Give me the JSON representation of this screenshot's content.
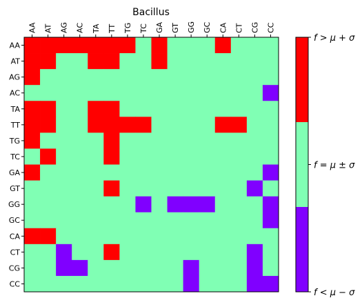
{
  "chart_data": {
    "type": "heatmap",
    "title": "Bacillus",
    "x_labels": [
      "AA",
      "AT",
      "AG",
      "AC",
      "TA",
      "TT",
      "TG",
      "TC",
      "GA",
      "GT",
      "GG",
      "GC",
      "CA",
      "CT",
      "CG",
      "CC"
    ],
    "y_labels": [
      "AA",
      "AT",
      "AG",
      "AC",
      "TA",
      "TT",
      "TG",
      "TC",
      "GA",
      "GT",
      "GG",
      "GC",
      "CA",
      "CT",
      "CG",
      "CC"
    ],
    "values_legend": "1 = f > μ + σ (high), 0 = f = μ ± σ (typical), -1 = f < μ − σ (low)",
    "values": [
      [
        1,
        1,
        1,
        1,
        1,
        1,
        1,
        0,
        1,
        0,
        0,
        0,
        1,
        0,
        0,
        0
      ],
      [
        1,
        1,
        0,
        0,
        1,
        1,
        0,
        0,
        1,
        0,
        0,
        0,
        0,
        0,
        0,
        0
      ],
      [
        1,
        0,
        0,
        0,
        0,
        0,
        0,
        0,
        0,
        0,
        0,
        0,
        0,
        0,
        0,
        0
      ],
      [
        0,
        0,
        0,
        0,
        0,
        0,
        0,
        0,
        0,
        0,
        0,
        0,
        0,
        0,
        0,
        -1
      ],
      [
        1,
        1,
        0,
        0,
        1,
        1,
        0,
        0,
        0,
        0,
        0,
        0,
        0,
        0,
        0,
        0
      ],
      [
        1,
        1,
        0,
        0,
        1,
        1,
        1,
        1,
        0,
        0,
        0,
        0,
        1,
        1,
        0,
        0
      ],
      [
        1,
        0,
        0,
        0,
        0,
        1,
        0,
        0,
        0,
        0,
        0,
        0,
        0,
        0,
        0,
        0
      ],
      [
        0,
        1,
        0,
        0,
        0,
        1,
        0,
        0,
        0,
        0,
        0,
        0,
        0,
        0,
        0,
        0
      ],
      [
        1,
        0,
        0,
        0,
        0,
        0,
        0,
        0,
        0,
        0,
        0,
        0,
        0,
        0,
        0,
        -1
      ],
      [
        0,
        0,
        0,
        0,
        0,
        1,
        0,
        0,
        0,
        0,
        0,
        0,
        0,
        0,
        -1,
        0
      ],
      [
        0,
        0,
        0,
        0,
        0,
        0,
        0,
        -1,
        0,
        -1,
        -1,
        -1,
        0,
        0,
        0,
        -1
      ],
      [
        0,
        0,
        0,
        0,
        0,
        0,
        0,
        0,
        0,
        0,
        0,
        0,
        0,
        0,
        0,
        -1
      ],
      [
        1,
        1,
        0,
        0,
        0,
        0,
        0,
        0,
        0,
        0,
        0,
        0,
        0,
        0,
        0,
        0
      ],
      [
        0,
        0,
        -1,
        0,
        0,
        1,
        0,
        0,
        0,
        0,
        0,
        0,
        0,
        0,
        -1,
        0
      ],
      [
        0,
        0,
        -1,
        -1,
        0,
        0,
        0,
        0,
        0,
        0,
        -1,
        0,
        0,
        0,
        -1,
        0
      ],
      [
        0,
        0,
        0,
        0,
        0,
        0,
        0,
        0,
        0,
        0,
        -1,
        0,
        0,
        0,
        -1,
        -1
      ]
    ],
    "colorbar": {
      "ticks": [
        {
          "value": 1,
          "label": "f > μ + σ"
        },
        {
          "value": 0,
          "label": "f = μ ± σ"
        },
        {
          "value": -1,
          "label": "f < μ − σ"
        }
      ]
    },
    "colors": {
      "high": "#ff0000",
      "mid": "#80ffb4",
      "low": "#8000ff"
    },
    "grid": false,
    "legend_position": "right"
  }
}
